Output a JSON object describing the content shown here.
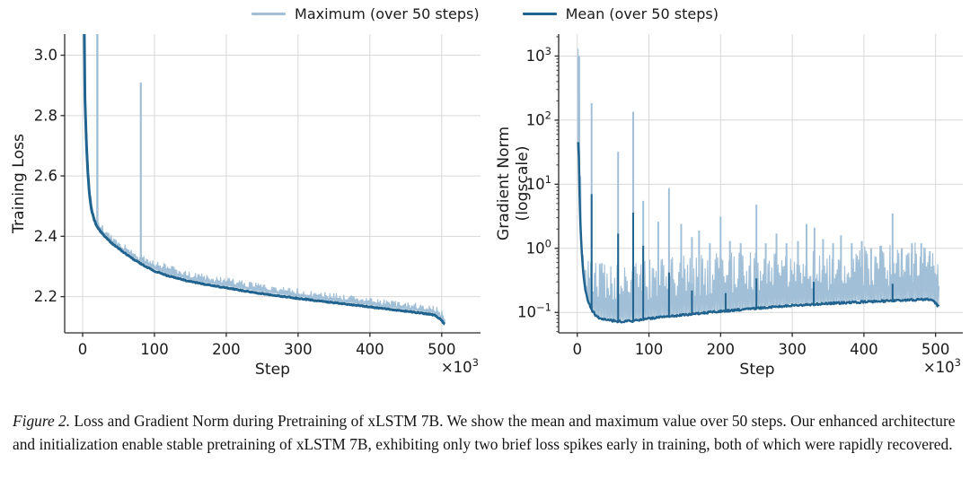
{
  "legend": {
    "items": [
      {
        "name": "maximum",
        "label": "Maximum (over 50 steps)",
        "color": "#a1bfd6"
      },
      {
        "name": "mean",
        "label": "Mean (over 50 steps)",
        "color": "#20638f"
      }
    ]
  },
  "caption": {
    "label": "Figure 2.",
    "text": " Loss and Gradient Norm during Pretraining of xLSTM 7B. We show the mean and maximum value over 50 steps. Our enhanced architecture and initialization enable stable pretraining of xLSTM 7B, exhibiting only two brief loss spikes early in training, both of which were rapidly recovered."
  },
  "style": {
    "grid_color": "#d8d8d8",
    "spine_color": "#2a2a2a",
    "text_color": "#1a1a1a",
    "max_color": "#a1bfd6",
    "mean_color": "#20638f"
  },
  "chart_data": [
    {
      "type": "line",
      "title": "",
      "xlabel": "Step",
      "ylabel": "Training Loss",
      "x_offset_label": {
        "base": "×10",
        "exp": "3"
      },
      "yscale": "linear",
      "xlim": [
        -25,
        554
      ],
      "ylim": [
        2.08,
        3.07
      ],
      "grid": true,
      "legend_position": "top-center",
      "xticks": [
        {
          "v": 0,
          "label": "0"
        },
        {
          "v": 100,
          "label": "100"
        },
        {
          "v": 200,
          "label": "200"
        },
        {
          "v": 300,
          "label": "300"
        },
        {
          "v": 400,
          "label": "400"
        },
        {
          "v": 500,
          "label": "500"
        }
      ],
      "yticks": [
        {
          "v": 2.2,
          "label": "2.2"
        },
        {
          "v": 2.4,
          "label": "2.4"
        },
        {
          "v": 2.6,
          "label": "2.6"
        },
        {
          "v": 2.8,
          "label": "2.8"
        },
        {
          "v": 3.0,
          "label": "3.0"
        }
      ],
      "x_units": "thousand steps",
      "series": [
        {
          "role": "max",
          "name": "Maximum (over 50 steps)",
          "band_bottom_offset": 0.006,
          "noise_amp": 0.012,
          "keypoints": [
            [
              1.5,
              3.3
            ],
            [
              3,
              2.89
            ],
            [
              5,
              2.74
            ],
            [
              7,
              2.64
            ],
            [
              9,
              2.57
            ],
            [
              12,
              2.515
            ],
            [
              16,
              2.475
            ],
            [
              20,
              2.452
            ],
            [
              25,
              2.435
            ],
            [
              30,
              2.422
            ],
            [
              40,
              2.398
            ],
            [
              50,
              2.38
            ],
            [
              60,
              2.362
            ],
            [
              70,
              2.345
            ],
            [
              80,
              2.33
            ],
            [
              90,
              2.318
            ],
            [
              100,
              2.31
            ],
            [
              120,
              2.295
            ],
            [
              150,
              2.272
            ],
            [
              175,
              2.26
            ],
            [
              200,
              2.252
            ],
            [
              225,
              2.242
            ],
            [
              250,
              2.232
            ],
            [
              275,
              2.223
            ],
            [
              300,
              2.216
            ],
            [
              325,
              2.208
            ],
            [
              350,
              2.2
            ],
            [
              375,
              2.193
            ],
            [
              400,
              2.187
            ],
            [
              425,
              2.18
            ],
            [
              450,
              2.173
            ],
            [
              470,
              2.167
            ],
            [
              490,
              2.16
            ],
            [
              497,
              2.15
            ],
            [
              503,
              2.136
            ],
            [
              505,
              2.132
            ]
          ],
          "spikes": [
            [
              20.5,
              3.3,
              2.4
            ],
            [
              81,
              2.91,
              2.2
            ]
          ]
        },
        {
          "role": "mean",
          "name": "Mean (over 50 steps)",
          "jitter": 0.0015,
          "keypoints": [
            [
              1.5,
              3.3
            ],
            [
              3,
              2.87
            ],
            [
              5,
              2.72
            ],
            [
              7,
              2.62
            ],
            [
              9,
              2.55
            ],
            [
              12,
              2.49
            ],
            [
              16,
              2.455
            ],
            [
              20,
              2.432
            ],
            [
              25,
              2.415
            ],
            [
              30,
              2.402
            ],
            [
              40,
              2.378
            ],
            [
              50,
              2.36
            ],
            [
              60,
              2.342
            ],
            [
              70,
              2.325
            ],
            [
              80,
              2.31
            ],
            [
              90,
              2.297
            ],
            [
              100,
              2.285
            ],
            [
              120,
              2.268
            ],
            [
              150,
              2.25
            ],
            [
              175,
              2.239
            ],
            [
              200,
              2.229
            ],
            [
              225,
              2.219
            ],
            [
              250,
              2.21
            ],
            [
              275,
              2.202
            ],
            [
              300,
              2.194
            ],
            [
              325,
              2.187
            ],
            [
              350,
              2.18
            ],
            [
              375,
              2.173
            ],
            [
              400,
              2.166
            ],
            [
              425,
              2.159
            ],
            [
              450,
              2.152
            ],
            [
              470,
              2.146
            ],
            [
              490,
              2.139
            ],
            [
              497,
              2.128
            ],
            [
              503,
              2.112
            ],
            [
              505,
              2.108
            ]
          ],
          "spikes": []
        }
      ]
    },
    {
      "type": "line",
      "title": "",
      "xlabel": "Step",
      "ylabel_lines": [
        "Gradient Norm",
        "(logscale)"
      ],
      "x_offset_label": {
        "base": "×10",
        "exp": "3"
      },
      "yscale": "log",
      "xlim": [
        -26,
        538
      ],
      "ylim": [
        0.048,
        2200
      ],
      "grid": true,
      "minor_ticks": true,
      "xticks": [
        {
          "v": 0,
          "label": "0"
        },
        {
          "v": 100,
          "label": "100"
        },
        {
          "v": 200,
          "label": "200"
        },
        {
          "v": 300,
          "label": "300"
        },
        {
          "v": 400,
          "label": "400"
        },
        {
          "v": 500,
          "label": "500"
        }
      ],
      "yticks": [
        {
          "v": 1000,
          "base": "10",
          "exp": "3"
        },
        {
          "v": 100,
          "base": "10",
          "exp": "2"
        },
        {
          "v": 10,
          "base": "10",
          "exp": "1"
        },
        {
          "v": 1,
          "base": "10",
          "exp": "0"
        },
        {
          "v": 0.1,
          "base": "10",
          "exp": "−1"
        }
      ],
      "x_units": "thousand steps",
      "series": [
        {
          "role": "max",
          "name": "Maximum (over 50 steps)",
          "band_bottom_factor": 1.05,
          "log_noise": 0.33,
          "keypoints": [
            [
              1.2,
              1500
            ],
            [
              2,
              1000
            ],
            [
              3,
              200
            ],
            [
              4,
              20
            ],
            [
              5,
              5
            ],
            [
              6,
              1.8
            ],
            [
              8,
              0.9
            ],
            [
              12,
              0.55
            ],
            [
              16,
              0.4
            ],
            [
              20,
              0.32
            ],
            [
              40,
              0.33
            ],
            [
              60,
              0.35
            ],
            [
              80,
              0.36
            ],
            [
              100,
              0.33
            ],
            [
              125,
              0.35
            ],
            [
              150,
              0.36
            ],
            [
              175,
              0.38
            ],
            [
              200,
              0.4
            ],
            [
              250,
              0.42
            ],
            [
              300,
              0.42
            ],
            [
              350,
              0.46
            ],
            [
              400,
              0.5
            ],
            [
              450,
              0.55
            ],
            [
              490,
              0.6
            ],
            [
              500,
              0.55
            ],
            [
              505,
              0.45
            ]
          ],
          "spikes": [
            [
              2,
              1000,
              3
            ],
            [
              20,
              185,
              2
            ],
            [
              57,
              32,
              2
            ],
            [
              78,
              135,
              2
            ],
            [
              92,
              5.5,
              2
            ],
            [
              113,
              2.6,
              2
            ],
            [
              128,
              8.7,
              2
            ],
            [
              145,
              2.4,
              2
            ],
            [
              160,
              1.5,
              2
            ],
            [
              170,
              1.9,
              2
            ],
            [
              185,
              1.2,
              2
            ],
            [
              200,
              3.1,
              2
            ],
            [
              213,
              1.3,
              2
            ],
            [
              228,
              1.2,
              2
            ],
            [
              250,
              4.8,
              2
            ],
            [
              263,
              1.2,
              2
            ],
            [
              278,
              1.7,
              2
            ],
            [
              292,
              1.2,
              2
            ],
            [
              308,
              1.3,
              2
            ],
            [
              320,
              2.4,
              2
            ],
            [
              331,
              2.1,
              2
            ],
            [
              343,
              1.4,
              2
            ],
            [
              357,
              1.2,
              2
            ],
            [
              368,
              1.6,
              2
            ],
            [
              383,
              1.2,
              2
            ],
            [
              397,
              1.3,
              2
            ],
            [
              410,
              1.0,
              2
            ],
            [
              424,
              1.1,
              2
            ],
            [
              440,
              3.5,
              2
            ],
            [
              453,
              1.0,
              2
            ],
            [
              467,
              1.2,
              2
            ],
            [
              480,
              1.2,
              2
            ],
            [
              492,
              0.9,
              2
            ]
          ]
        },
        {
          "role": "mean",
          "name": "Mean (over 50 steps)",
          "log_jitter": 0.015,
          "keypoints": [
            [
              1.2,
              45
            ],
            [
              2,
              35
            ],
            [
              3,
              8
            ],
            [
              4,
              3
            ],
            [
              5,
              1.6
            ],
            [
              6,
              1.0
            ],
            [
              8,
              0.45
            ],
            [
              10,
              0.28
            ],
            [
              12,
              0.2
            ],
            [
              15,
              0.15
            ],
            [
              20,
              0.11
            ],
            [
              25,
              0.092
            ],
            [
              30,
              0.083
            ],
            [
              40,
              0.077
            ],
            [
              50,
              0.074
            ],
            [
              60,
              0.072
            ],
            [
              80,
              0.074
            ],
            [
              100,
              0.08
            ],
            [
              125,
              0.086
            ],
            [
              150,
              0.092
            ],
            [
              175,
              0.098
            ],
            [
              200,
              0.104
            ],
            [
              225,
              0.11
            ],
            [
              250,
              0.116
            ],
            [
              275,
              0.122
            ],
            [
              300,
              0.128
            ],
            [
              325,
              0.133
            ],
            [
              350,
              0.138
            ],
            [
              375,
              0.142
            ],
            [
              400,
              0.146
            ],
            [
              425,
              0.15
            ],
            [
              450,
              0.154
            ],
            [
              475,
              0.158
            ],
            [
              490,
              0.161
            ],
            [
              497,
              0.15
            ],
            [
              503,
              0.128
            ],
            [
              505,
              0.124
            ]
          ],
          "spikes": [
            [
              20,
              7,
              2
            ],
            [
              57,
              1.7,
              2
            ],
            [
              78,
              3.6,
              2
            ],
            [
              92,
              1.1,
              2
            ],
            [
              128,
              0.42,
              2
            ],
            [
              160,
              0.22,
              2
            ],
            [
              207,
              0.2,
              2
            ],
            [
              250,
              0.34,
              2
            ],
            [
              330,
              0.3,
              2
            ],
            [
              440,
              0.28,
              2
            ]
          ]
        }
      ]
    }
  ]
}
